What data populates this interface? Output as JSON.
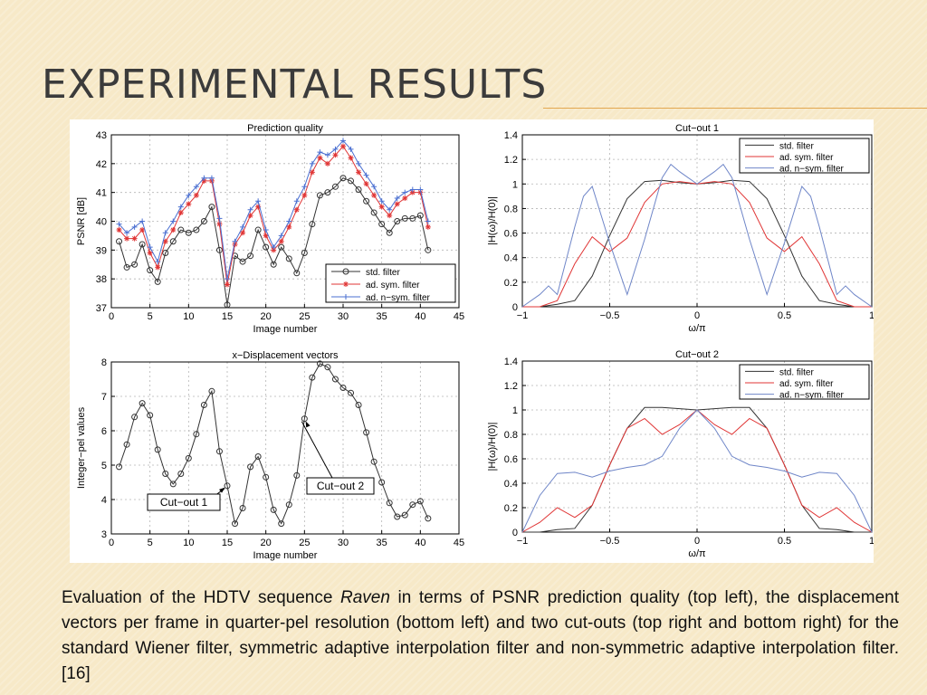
{
  "slide": {
    "title": "EXPERIMENTAL RESULTS"
  },
  "caption": {
    "part1": "Evaluation of the HDTV sequence ",
    "italic": "Raven",
    "part2": " in terms of PSNR prediction quality (top left), the  displacement  vectors per frame in quarter-pel resolution (bottom left) and two cut-outs (top right and bottom right)  for the standard Wiener filter, symmetric adaptive interpolation filter and  non-symmetric adaptive interpolation filter. [16]"
  },
  "colors": {
    "std": "#333333",
    "sym": "#e03535",
    "nsym": "#6f86c8",
    "psnr_nsym": "#4a6fd1"
  },
  "chart_data": [
    {
      "type": "line",
      "title": "Prediction quality",
      "xlabel": "Image number",
      "ylabel": "PSNR [dB]",
      "xlim": [
        0,
        45
      ],
      "ylim": [
        37,
        43
      ],
      "xticks": [
        0,
        5,
        10,
        15,
        20,
        25,
        30,
        35,
        40,
        45
      ],
      "yticks": [
        37,
        38,
        39,
        40,
        41,
        42,
        43
      ],
      "grid": true,
      "legend": "bottom-right",
      "series": [
        {
          "name": "std. filter",
          "marker": "circle",
          "x": [
            1,
            2,
            3,
            4,
            5,
            6,
            7,
            8,
            9,
            10,
            11,
            12,
            13,
            14,
            15,
            16,
            17,
            18,
            19,
            20,
            21,
            22,
            23,
            24,
            25,
            26,
            27,
            28,
            29,
            30,
            31,
            32,
            33,
            34,
            35,
            36,
            37,
            38,
            39,
            40,
            41
          ],
          "values": [
            39.3,
            38.4,
            38.5,
            39.2,
            38.3,
            37.9,
            38.9,
            39.3,
            39.7,
            39.6,
            39.7,
            40.0,
            40.5,
            39.0,
            37.1,
            38.8,
            38.6,
            38.8,
            39.7,
            39.1,
            38.5,
            39.1,
            38.7,
            38.2,
            38.9,
            39.9,
            40.9,
            41.0,
            41.2,
            41.5,
            41.4,
            41.1,
            40.7,
            40.3,
            39.9,
            39.6,
            40.0,
            40.1,
            40.1,
            40.2,
            39.0
          ]
        },
        {
          "name": "ad. sym. filter",
          "marker": "star",
          "x": [
            1,
            2,
            3,
            4,
            5,
            6,
            7,
            8,
            9,
            10,
            11,
            12,
            13,
            14,
            15,
            16,
            17,
            18,
            19,
            20,
            21,
            22,
            23,
            24,
            25,
            26,
            27,
            28,
            29,
            30,
            31,
            32,
            33,
            34,
            35,
            36,
            37,
            38,
            39,
            40,
            41
          ],
          "values": [
            39.7,
            39.4,
            39.4,
            39.7,
            38.9,
            38.4,
            39.3,
            39.7,
            40.3,
            40.6,
            40.9,
            41.4,
            41.4,
            39.9,
            37.8,
            39.2,
            39.6,
            40.2,
            40.5,
            39.5,
            39.0,
            39.3,
            39.8,
            40.4,
            40.9,
            41.7,
            42.2,
            42.0,
            42.3,
            42.6,
            42.2,
            41.7,
            41.3,
            40.9,
            40.5,
            40.2,
            40.6,
            40.8,
            41.0,
            41.0,
            39.8
          ]
        },
        {
          "name": "ad. n−sym. filter",
          "marker": "plus",
          "x": [
            1,
            2,
            3,
            4,
            5,
            6,
            7,
            8,
            9,
            10,
            11,
            12,
            13,
            14,
            15,
            16,
            17,
            18,
            19,
            20,
            21,
            22,
            23,
            24,
            25,
            26,
            27,
            28,
            29,
            30,
            31,
            32,
            33,
            34,
            35,
            36,
            37,
            38,
            39,
            40,
            41
          ],
          "values": [
            39.9,
            39.6,
            39.8,
            40.0,
            39.1,
            38.6,
            39.6,
            40.0,
            40.5,
            40.9,
            41.2,
            41.5,
            41.5,
            40.1,
            38.0,
            39.3,
            39.8,
            40.4,
            40.7,
            39.7,
            39.1,
            39.5,
            40.0,
            40.7,
            41.2,
            42.0,
            42.4,
            42.3,
            42.5,
            42.8,
            42.5,
            42.0,
            41.6,
            41.2,
            40.7,
            40.4,
            40.8,
            41.0,
            41.1,
            41.1,
            40.0
          ]
        }
      ]
    },
    {
      "type": "line",
      "title": "x−Displacement vectors",
      "xlabel": "Image number",
      "ylabel": "Integer−pel values",
      "xlim": [
        0,
        45
      ],
      "ylim": [
        3,
        8
      ],
      "xticks": [
        0,
        5,
        10,
        15,
        20,
        25,
        30,
        35,
        40,
        45
      ],
      "yticks": [
        3,
        4,
        5,
        6,
        7,
        8
      ],
      "grid": true,
      "series": [
        {
          "name": "",
          "marker": "circle",
          "x": [
            1,
            2,
            3,
            4,
            5,
            6,
            7,
            8,
            9,
            10,
            11,
            12,
            13,
            14,
            15,
            16,
            17,
            18,
            19,
            20,
            21,
            22,
            23,
            24,
            25,
            26,
            27,
            28,
            29,
            30,
            31,
            32,
            33,
            34,
            35,
            36,
            37,
            38,
            39,
            40,
            41
          ],
          "values": [
            4.95,
            5.6,
            6.4,
            6.8,
            6.45,
            5.45,
            4.75,
            4.45,
            4.75,
            5.2,
            5.9,
            6.75,
            7.15,
            5.4,
            4.4,
            3.3,
            3.75,
            4.95,
            5.25,
            4.65,
            3.7,
            3.3,
            3.85,
            4.7,
            6.35,
            7.55,
            7.95,
            7.85,
            7.5,
            7.25,
            7.1,
            6.75,
            5.95,
            5.1,
            4.5,
            3.9,
            3.5,
            3.55,
            3.85,
            3.95,
            3.45
          ]
        }
      ],
      "annotations": [
        {
          "text": "Cut−out 1",
          "x": 15,
          "y": 4.4
        },
        {
          "text": "Cut−out 2",
          "x": 25,
          "y": 6.35
        }
      ]
    },
    {
      "type": "line",
      "title": "Cut−out 1",
      "xlabel": "ω/π",
      "ylabel": "|H(ω)/H(0)|",
      "xlim": [
        -1,
        1
      ],
      "ylim": [
        0,
        1.4
      ],
      "xticks": [
        -1,
        -0.5,
        0,
        0.5,
        1
      ],
      "xtick_labels": [
        "−1",
        "−0.5",
        "0",
        "0.5",
        "1"
      ],
      "yticks": [
        0,
        0.2,
        0.4,
        0.6,
        0.8,
        1,
        1.2,
        1.4
      ],
      "grid": true,
      "legend": "top-right",
      "series": [
        {
          "name": "std. filter",
          "x": [
            -1,
            -0.9,
            -0.8,
            -0.7,
            -0.6,
            -0.5,
            -0.4,
            -0.3,
            -0.2,
            -0.1,
            0,
            0.1,
            0.2,
            0.3,
            0.4,
            0.5,
            0.6,
            0.7,
            0.8,
            0.9,
            1
          ],
          "values": [
            0,
            0,
            0.02,
            0.05,
            0.25,
            0.58,
            0.88,
            1.02,
            1.03,
            1.01,
            1.0,
            1.01,
            1.03,
            1.02,
            0.88,
            0.58,
            0.25,
            0.05,
            0.02,
            0,
            0
          ]
        },
        {
          "name": "ad. sym. filter",
          "x": [
            -1,
            -0.9,
            -0.8,
            -0.7,
            -0.6,
            -0.5,
            -0.4,
            -0.3,
            -0.2,
            -0.1,
            0,
            0.1,
            0.2,
            0.3,
            0.4,
            0.5,
            0.6,
            0.7,
            0.8,
            0.9,
            1
          ],
          "values": [
            0,
            0,
            0.05,
            0.35,
            0.57,
            0.45,
            0.56,
            0.85,
            1.0,
            1.02,
            1.0,
            1.02,
            1.0,
            0.85,
            0.56,
            0.45,
            0.57,
            0.35,
            0.05,
            0,
            0
          ]
        },
        {
          "name": "ad. n−sym. filter",
          "x": [
            -1,
            -0.9,
            -0.85,
            -0.8,
            -0.7,
            -0.65,
            -0.6,
            -0.5,
            -0.4,
            -0.3,
            -0.2,
            -0.15,
            -0.1,
            0,
            0.1,
            0.15,
            0.2,
            0.3,
            0.4,
            0.5,
            0.6,
            0.65,
            0.7,
            0.8,
            0.85,
            0.9,
            1
          ],
          "values": [
            0,
            0.1,
            0.17,
            0.1,
            0.65,
            0.9,
            0.98,
            0.52,
            0.1,
            0.55,
            1.05,
            1.16,
            1.1,
            1.0,
            1.1,
            1.16,
            1.05,
            0.55,
            0.1,
            0.52,
            0.98,
            0.9,
            0.65,
            0.1,
            0.17,
            0.1,
            0
          ]
        }
      ]
    },
    {
      "type": "line",
      "title": "Cut−out 2",
      "xlabel": "ω/π",
      "ylabel": "|H(ω)/H(0)|",
      "xlim": [
        -1,
        1
      ],
      "ylim": [
        0,
        1.4
      ],
      "xticks": [
        -1,
        -0.5,
        0,
        0.5,
        1
      ],
      "xtick_labels": [
        "−1",
        "−0.5",
        "0",
        "0.5",
        "1"
      ],
      "yticks": [
        0,
        0.2,
        0.4,
        0.6,
        0.8,
        1,
        1.2,
        1.4
      ],
      "grid": true,
      "legend": "top-right",
      "series": [
        {
          "name": "std. filter",
          "x": [
            -1,
            -0.9,
            -0.8,
            -0.7,
            -0.6,
            -0.5,
            -0.4,
            -0.3,
            -0.2,
            -0.1,
            0,
            0.1,
            0.2,
            0.3,
            0.4,
            0.5,
            0.6,
            0.7,
            0.8,
            0.9,
            1
          ],
          "values": [
            0,
            0,
            0.02,
            0.03,
            0.22,
            0.55,
            0.85,
            1.02,
            1.02,
            1.01,
            1.0,
            1.01,
            1.02,
            1.02,
            0.85,
            0.55,
            0.22,
            0.03,
            0.02,
            0,
            0
          ]
        },
        {
          "name": "ad. sym. filter",
          "x": [
            -1,
            -0.9,
            -0.8,
            -0.7,
            -0.6,
            -0.5,
            -0.4,
            -0.3,
            -0.2,
            -0.1,
            0,
            0.1,
            0.2,
            0.3,
            0.4,
            0.5,
            0.6,
            0.7,
            0.8,
            0.9,
            1
          ],
          "values": [
            0,
            0.08,
            0.2,
            0.12,
            0.22,
            0.55,
            0.85,
            0.93,
            0.8,
            0.88,
            1.0,
            0.88,
            0.8,
            0.93,
            0.85,
            0.55,
            0.22,
            0.12,
            0.2,
            0.08,
            0
          ]
        },
        {
          "name": "ad. n−sym. filter",
          "x": [
            -1,
            -0.9,
            -0.8,
            -0.7,
            -0.6,
            -0.5,
            -0.4,
            -0.3,
            -0.2,
            -0.1,
            0,
            0.1,
            0.2,
            0.3,
            0.4,
            0.5,
            0.6,
            0.7,
            0.8,
            0.9,
            1
          ],
          "values": [
            0,
            0.3,
            0.48,
            0.49,
            0.45,
            0.5,
            0.53,
            0.55,
            0.62,
            0.85,
            1.0,
            0.85,
            0.62,
            0.55,
            0.53,
            0.5,
            0.45,
            0.49,
            0.48,
            0.3,
            0
          ]
        }
      ]
    }
  ]
}
